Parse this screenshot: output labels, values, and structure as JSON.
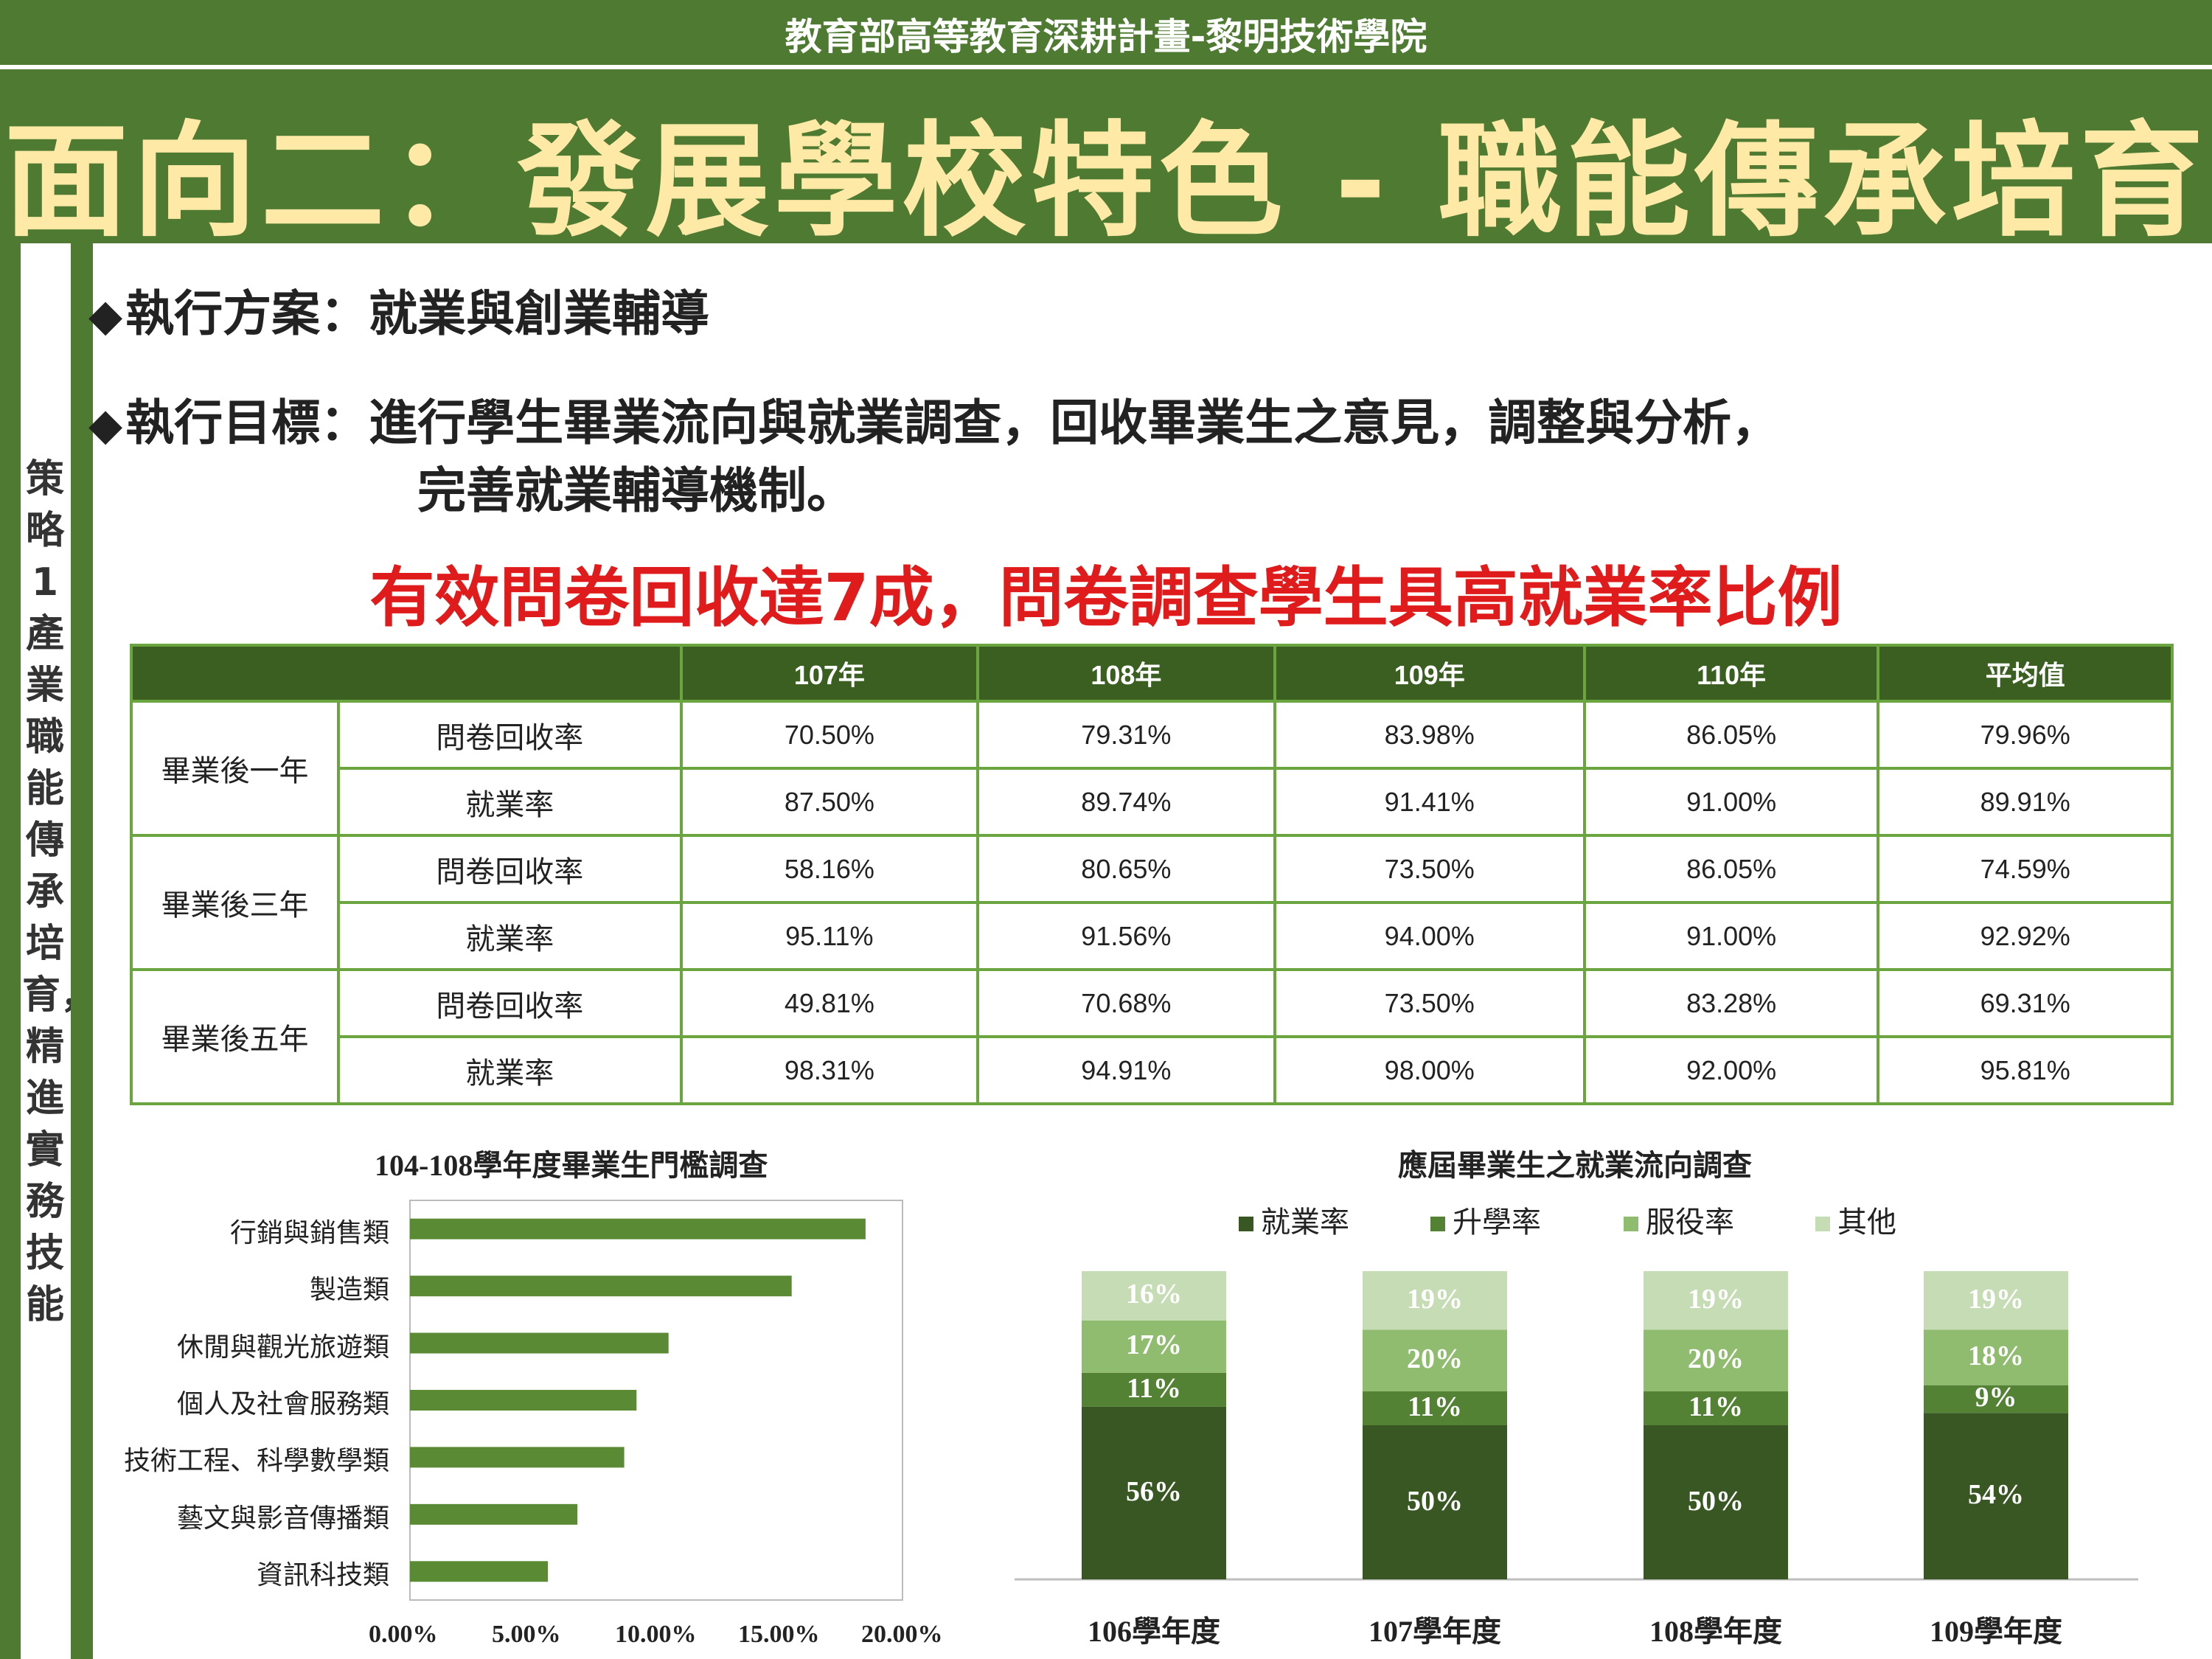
{
  "header": {
    "subtitle": "教育部高等教育深耕計畫-黎明技術學院",
    "title": "面向二：發展學校特色 - 職能傳承培育"
  },
  "sidebar": {
    "strategy_text": "策略1產業職能傳承培育，精進實務技能"
  },
  "content": {
    "plan_label": "執行方案：就業與創業輔導",
    "goal_label": "執行目標：進行學生畢業流向與就業調查，回收畢業生之意見，調整與分析，",
    "goal_label_line2": "完善就業輔導機制。",
    "highlight": "有效問卷回收達7成，問卷調查學生具高就業率比例",
    "bullet_symbol": "◆"
  },
  "table": {
    "headers": [
      "",
      "107年",
      "108年",
      "109年",
      "110年",
      "平均值"
    ],
    "groups": [
      {
        "name": "畢業後一年",
        "rows": [
          {
            "metric": "問卷回收率",
            "values": [
              "70.50%",
              "79.31%",
              "83.98%",
              "86.05%",
              "79.96%"
            ]
          },
          {
            "metric": "就業率",
            "values": [
              "87.50%",
              "89.74%",
              "91.41%",
              "91.00%",
              "89.91%"
            ]
          }
        ]
      },
      {
        "name": "畢業後三年",
        "rows": [
          {
            "metric": "問卷回收率",
            "values": [
              "58.16%",
              "80.65%",
              "73.50%",
              "86.05%",
              "74.59%"
            ]
          },
          {
            "metric": "就業率",
            "values": [
              "95.11%",
              "91.56%",
              "94.00%",
              "91.00%",
              "92.92%"
            ]
          }
        ]
      },
      {
        "name": "畢業後五年",
        "rows": [
          {
            "metric": "問卷回收率",
            "values": [
              "49.81%",
              "70.68%",
              "73.50%",
              "83.28%",
              "69.31%"
            ]
          },
          {
            "metric": "就業率",
            "values": [
              "98.31%",
              "94.91%",
              "98.00%",
              "92.00%",
              "95.81%"
            ]
          }
        ]
      }
    ]
  },
  "chart_data": [
    {
      "type": "bar",
      "orientation": "horizontal",
      "title": "104-108學年度畢業生門檻調查",
      "categories": [
        "行銷與銷售類",
        "製造類",
        "休閒與觀光旅遊類",
        "個人及社會服務類",
        "技術工程、科學數學類",
        "藝文與影音傳播類",
        "資訊科技類"
      ],
      "values": [
        18.5,
        15.5,
        10.5,
        9.2,
        8.7,
        6.8,
        5.6
      ],
      "xlim": [
        0,
        20
      ],
      "xticks": [
        "0.00%",
        "5.00%",
        "10.00%",
        "15.00%",
        "20.00%"
      ],
      "color": "#5b8a35",
      "grid": false
    },
    {
      "type": "bar",
      "stacked": true,
      "title": "應屆畢業生之就業流向調查",
      "categories": [
        "106學年度",
        "107學年度",
        "108學年度",
        "109學年度"
      ],
      "series": [
        {
          "name": "就業率",
          "values": [
            56,
            50,
            50,
            54
          ],
          "labels": [
            "56%",
            "50%",
            "50%",
            "54%"
          ],
          "color": "#385723"
        },
        {
          "name": "升學率",
          "values": [
            11,
            11,
            11,
            9
          ],
          "labels": [
            "11%",
            "11%",
            "11%",
            "9%"
          ],
          "color": "#548235"
        },
        {
          "name": "服役率",
          "values": [
            17,
            20,
            20,
            18
          ],
          "labels": [
            "17%",
            "20%",
            "20%",
            "18%"
          ],
          "color": "#8fbc6e"
        },
        {
          "name": "其他",
          "values": [
            16,
            19,
            19,
            19
          ],
          "labels": [
            "16%",
            "19%",
            "19%",
            "19%"
          ],
          "color": "#c5dcb4"
        }
      ],
      "legend": "top",
      "legend_marker": "■"
    }
  ]
}
